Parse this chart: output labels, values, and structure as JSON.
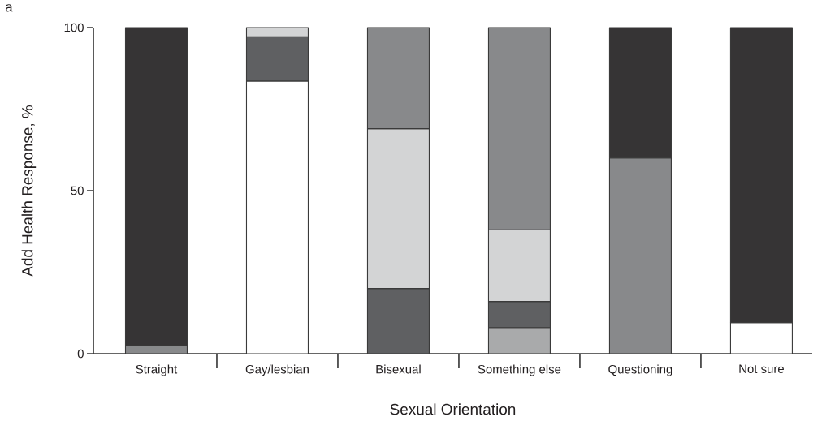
{
  "chart_data": {
    "type": "bar",
    "stacked": true,
    "categories": [
      "Straight",
      "Gay/lesbian",
      "Bisexual",
      "Something else",
      "Questioning",
      "Not sure"
    ],
    "series": [
      {
        "color": "#ffffff",
        "values": [
          null,
          83.6,
          null,
          null,
          null,
          9.5
        ]
      },
      {
        "color": "#a9aaab",
        "values": [
          null,
          null,
          null,
          8,
          null,
          null
        ]
      },
      {
        "color": "#5f6062",
        "values": [
          null,
          13.6,
          20,
          8,
          null,
          null
        ]
      },
      {
        "color": "#d3d4d5",
        "values": [
          null,
          2.8,
          49,
          22,
          null,
          null
        ]
      },
      {
        "color": "#88898b",
        "values": [
          2.5,
          null,
          31,
          62,
          60,
          null
        ]
      },
      {
        "color": "#363435",
        "values": [
          97.5,
          null,
          null,
          null,
          40,
          90.5
        ]
      }
    ],
    "ylim": [
      0,
      100
    ],
    "yticks": [
      0,
      50,
      100
    ],
    "xlabel": "Sexual Orientation",
    "ylabel": "Add Health Response, %",
    "annotations": [
      "a"
    ]
  }
}
